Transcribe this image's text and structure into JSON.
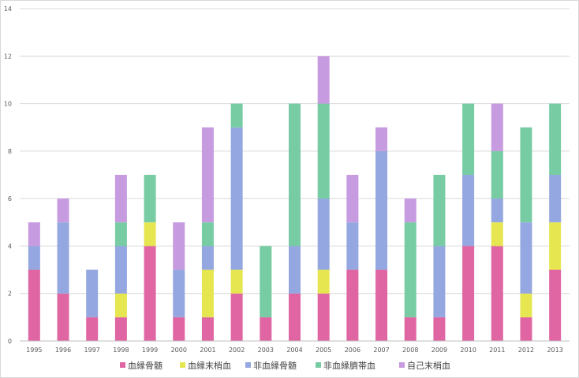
{
  "chart_data": {
    "type": "bar",
    "stacked": true,
    "categories": [
      "1995",
      "1996",
      "1997",
      "1998",
      "1999",
      "2000",
      "2001",
      "2002",
      "2003",
      "2004",
      "2005",
      "2006",
      "2007",
      "2008",
      "2009",
      "2010",
      "2011",
      "2012",
      "2013"
    ],
    "series": [
      {
        "name": "血縁骨髄",
        "color": "#e066a3",
        "values": [
          3,
          2,
          1,
          1,
          4,
          1,
          1,
          2,
          1,
          2,
          2,
          3,
          3,
          1,
          1,
          4,
          4,
          1,
          3
        ]
      },
      {
        "name": "血縁末梢血",
        "color": "#e6e650",
        "values": [
          0,
          0,
          0,
          1,
          1,
          0,
          2,
          1,
          0,
          0,
          1,
          0,
          0,
          0,
          0,
          0,
          1,
          1,
          2
        ]
      },
      {
        "name": "非血縁骨髄",
        "color": "#94a7e0",
        "values": [
          1,
          3,
          2,
          2,
          0,
          2,
          1,
          6,
          0,
          2,
          3,
          2,
          5,
          0,
          3,
          3,
          1,
          3,
          2
        ]
      },
      {
        "name": "非血縁臍帯血",
        "color": "#77cca3",
        "values": [
          0,
          0,
          0,
          1,
          2,
          0,
          1,
          1,
          3,
          6,
          4,
          0,
          0,
          4,
          3,
          3,
          2,
          4,
          3
        ]
      },
      {
        "name": "自己末梢血",
        "color": "#c79be0",
        "values": [
          1,
          1,
          0,
          2,
          0,
          2,
          4,
          0,
          0,
          0,
          2,
          2,
          1,
          1,
          0,
          0,
          2,
          0,
          0
        ]
      }
    ],
    "ylim": [
      0,
      14
    ],
    "yticks": [
      "0",
      "2",
      "4",
      "6",
      "8",
      "10",
      "12",
      "14"
    ],
    "grid": true,
    "legend": "bottom"
  }
}
